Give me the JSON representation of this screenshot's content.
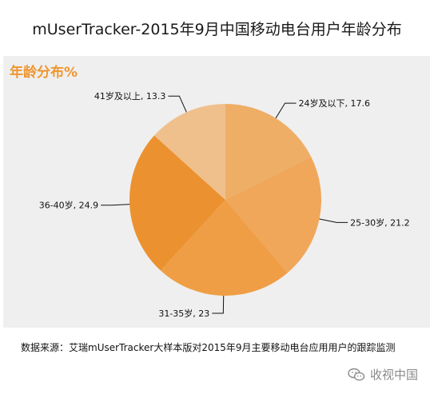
{
  "page_title": "mUserTracker-2015年9月中国移动电台用户年龄分布",
  "panel_title": "年龄分布%",
  "source_note": "数据来源：艾瑞mUserTracker大样本版对2015年9月主要移动电台应用用户的跟踪监测",
  "watermark": {
    "text": "收视中国",
    "icon": "wechat-icon"
  },
  "chart_data": {
    "type": "pie",
    "title": "年龄分布%",
    "categories": [
      "24岁及以下",
      "25-30岁",
      "31-35岁",
      "36-40岁",
      "41岁及以上"
    ],
    "values": [
      17.6,
      21.2,
      23,
      24.9,
      13.3
    ],
    "labels": [
      "24岁及以下, 17.6",
      "25-30岁, 21.2",
      "31-35岁, 23",
      "36-40岁, 24.9",
      "41岁及以上, 13.3"
    ],
    "colors": [
      "#efae66",
      "#f0a75a",
      "#ef9e45",
      "#ec9130",
      "#f0c08c"
    ]
  }
}
